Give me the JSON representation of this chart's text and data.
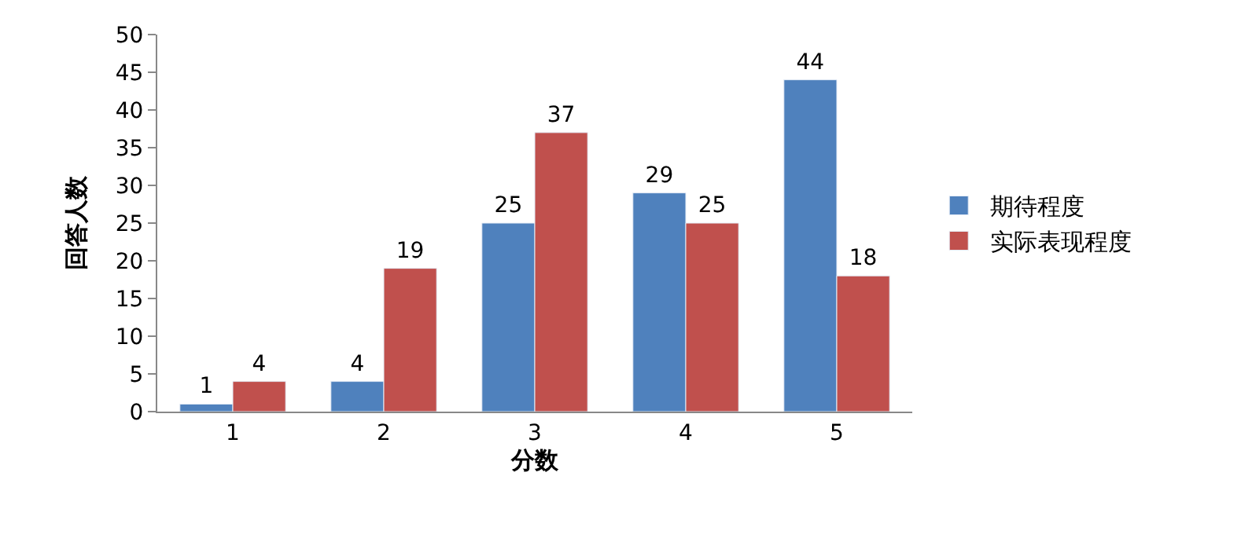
{
  "chart_data": {
    "type": "bar",
    "xlabel": "分数",
    "ylabel": "回答人数",
    "categories": [
      "1",
      "2",
      "3",
      "4",
      "5"
    ],
    "series": [
      {
        "name": "期待程度",
        "color": "#4f81bd",
        "values": [
          1,
          4,
          25,
          29,
          44
        ]
      },
      {
        "name": "实际表现程度",
        "color": "#c0504d",
        "values": [
          4,
          19,
          37,
          25,
          18
        ]
      }
    ],
    "ylim": [
      0,
      50
    ],
    "yticks": [
      0,
      5,
      10,
      15,
      20,
      25,
      30,
      35,
      40,
      45,
      50
    ],
    "legend": "right",
    "data_labels": true
  }
}
